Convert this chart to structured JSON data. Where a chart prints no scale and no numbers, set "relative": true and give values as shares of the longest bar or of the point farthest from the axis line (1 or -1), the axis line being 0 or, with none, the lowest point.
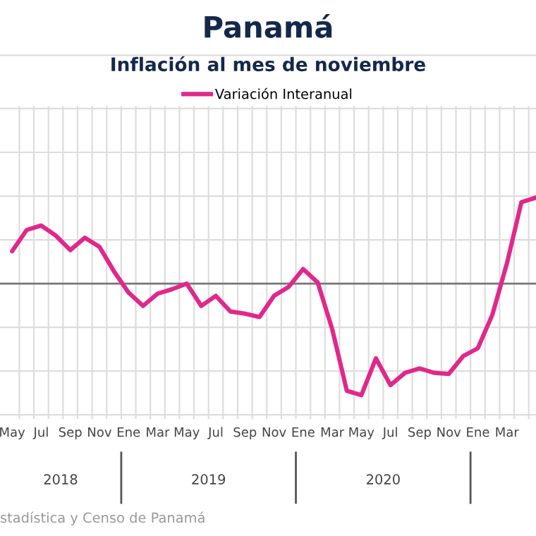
{
  "chart_data": {
    "type": "line",
    "title": "Panamá",
    "subtitle": "Inflación al mes de noviembre",
    "relative": true,
    "categories": [
      "May",
      null,
      "Jul",
      null,
      "Sep",
      null,
      "Nov",
      null,
      "Ene",
      null,
      "Mar",
      null,
      "May",
      null,
      "Jul",
      null,
      "Sep",
      null,
      "Nov",
      null,
      "Ene",
      null,
      "Mar",
      null,
      "May",
      null,
      "Jul",
      null,
      "Sep",
      null,
      "Nov",
      null,
      "Ene",
      null,
      "Mar",
      null,
      null
    ],
    "series": [
      {
        "name": "Variación Interanual",
        "color": "#e0288c",
        "values": [
          0.29,
          0.48,
          0.52,
          0.43,
          0.3,
          0.41,
          0.33,
          0.11,
          -0.08,
          -0.2,
          -0.09,
          -0.05,
          0.0,
          -0.2,
          -0.11,
          -0.25,
          -0.27,
          -0.3,
          -0.11,
          -0.03,
          0.13,
          0.01,
          -0.41,
          -0.96,
          -1.0,
          -0.67,
          -0.91,
          -0.8,
          -0.76,
          -0.8,
          -0.81,
          -0.65,
          -0.58,
          -0.28,
          0.18,
          0.73,
          0.77
        ]
      }
    ],
    "legend": "top",
    "grid": true,
    "annotations": [
      "2018",
      "2019",
      "2020",
      "stadística y Censo de Panamá"
    ]
  }
}
